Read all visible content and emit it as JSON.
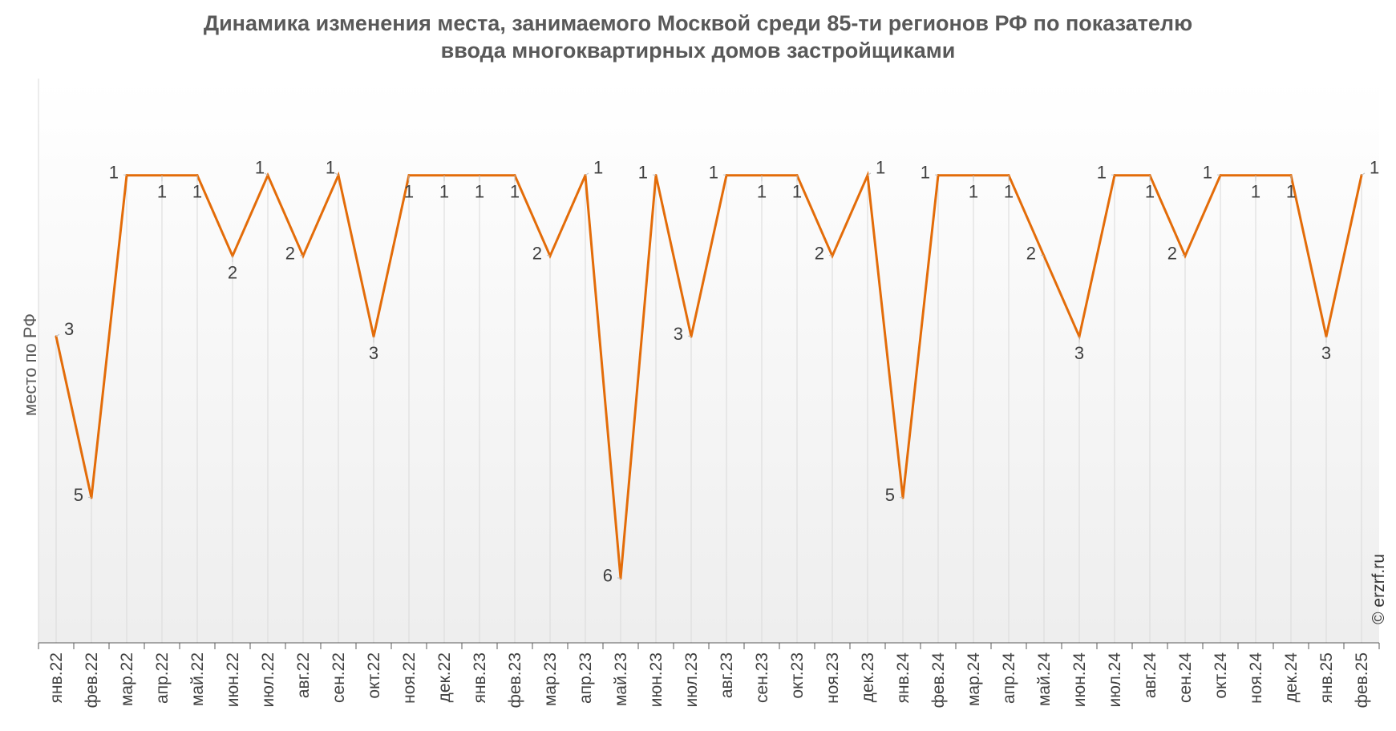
{
  "chart_data": {
    "type": "line",
    "title_lines": [
      "Динамика изменения места, занимаемого Москвой среди 85-ти регионов РФ по показателю",
      "ввода многоквартирных домов застройщиками"
    ],
    "xlabel": "",
    "ylabel": "место по РФ",
    "y_reversed": true,
    "ylim": [
      -0.2,
      6.8
    ],
    "grid": "vertical",
    "line_color": "#E36C09",
    "categories": [
      "янв.22",
      "фев.22",
      "мар.22",
      "апр.22",
      "май.22",
      "июн.22",
      "июл.22",
      "авг.22",
      "сен.22",
      "окт.22",
      "ноя.22",
      "дек.22",
      "янв.23",
      "фев.23",
      "мар.23",
      "апр.23",
      "май.23",
      "июн.23",
      "июл.23",
      "авг.23",
      "сен.23",
      "окт.23",
      "ноя.23",
      "дек.23",
      "янв.24",
      "фев.24",
      "мар.24",
      "апр.24",
      "май.24",
      "июн.24",
      "июл.24",
      "авг.24",
      "сен.24",
      "окт.24",
      "ноя.24",
      "дек.24",
      "янв.25",
      "фев.25"
    ],
    "values": [
      3,
      5,
      1,
      1,
      1,
      2,
      1,
      2,
      1,
      3,
      1,
      1,
      1,
      1,
      2,
      1,
      6,
      1,
      3,
      1,
      1,
      1,
      2,
      1,
      5,
      1,
      1,
      1,
      2,
      3,
      1,
      1,
      2,
      1,
      1,
      1,
      3,
      1
    ],
    "label_positions": [
      "right",
      "left",
      "left",
      "below",
      "below",
      "below",
      "above",
      "left",
      "above",
      "below",
      "below",
      "below",
      "below",
      "below",
      "left",
      "right",
      "left",
      "left",
      "left",
      "left",
      "below",
      "below",
      "left",
      "right",
      "left",
      "left",
      "below",
      "below",
      "left",
      "below",
      "left",
      "below",
      "left",
      "left",
      "below",
      "below",
      "below",
      "right"
    ]
  },
  "credit": "© erzrf.ru"
}
